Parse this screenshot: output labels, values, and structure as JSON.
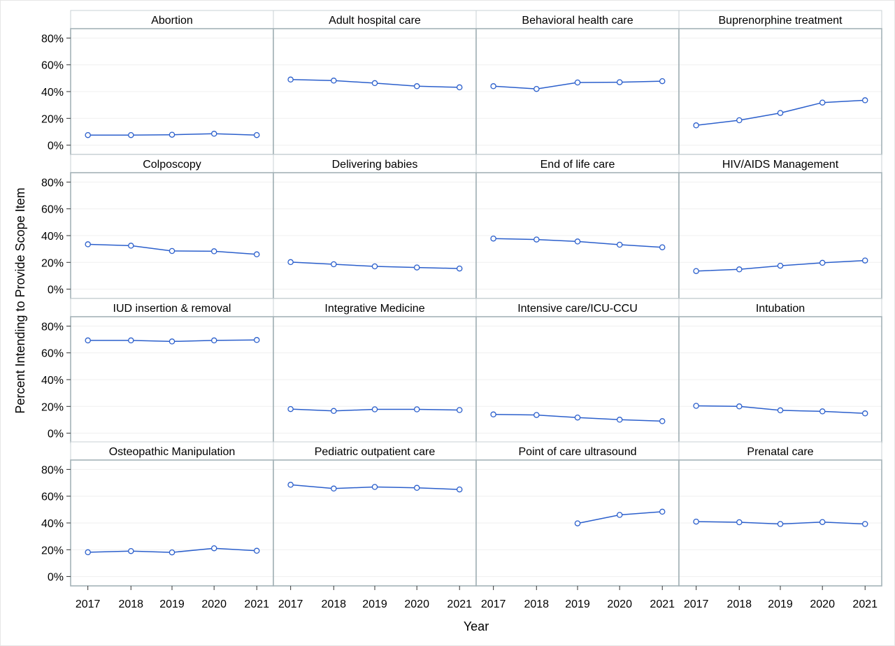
{
  "chart_data": {
    "type": "line",
    "xlabel": "Year",
    "ylabel": "Percent Intending to Provide Scope Item",
    "x": [
      "2017",
      "2018",
      "2019",
      "2020",
      "2021"
    ],
    "y_ticks": [
      "0%",
      "20%",
      "40%",
      "60%",
      "80%"
    ],
    "ylim": [
      -7,
      87
    ],
    "grid": true,
    "line_color": "#2b5fcc",
    "panels": [
      {
        "title": "Abortion",
        "values": [
          7.5,
          7.5,
          7.8,
          8.5,
          7.5
        ]
      },
      {
        "title": "Adult hospital care",
        "values": [
          49,
          48.2,
          46.3,
          44,
          43.2
        ]
      },
      {
        "title": "Behavioral health care",
        "values": [
          44,
          42,
          46.8,
          47,
          47.8
        ]
      },
      {
        "title": "Buprenorphine treatment",
        "values": [
          14.8,
          18.6,
          24,
          31.8,
          33.5
        ]
      },
      {
        "title": "Colposcopy",
        "values": [
          33.5,
          32.5,
          28.5,
          28.3,
          26
        ]
      },
      {
        "title": "Delivering babies",
        "values": [
          20.2,
          18.6,
          17,
          16.2,
          15.4
        ]
      },
      {
        "title": "End of life care",
        "values": [
          37.8,
          37.1,
          35.6,
          33.2,
          31.3
        ]
      },
      {
        "title": "HIV/AIDS Management",
        "values": [
          13.5,
          14.8,
          17.5,
          19.7,
          21.4
        ]
      },
      {
        "title": "IUD insertion & removal",
        "values": [
          69.3,
          69.3,
          68.5,
          69.3,
          69.6
        ]
      },
      {
        "title": "Integrative Medicine",
        "values": [
          18,
          16.6,
          17.8,
          17.8,
          17.3
        ]
      },
      {
        "title": "Intensive care/ICU-CCU",
        "values": [
          14,
          13.6,
          11.7,
          10.1,
          9
        ]
      },
      {
        "title": "Intubation",
        "values": [
          20.4,
          20,
          17.1,
          16.3,
          14.8
        ]
      },
      {
        "title": "Osteopathic Manipulation",
        "values": [
          18.1,
          19,
          18,
          21.1,
          19.2
        ]
      },
      {
        "title": "Pediatric outpatient care",
        "values": [
          68.5,
          65.7,
          66.9,
          66.2,
          65
        ]
      },
      {
        "title": "Point of care ultrasound",
        "values": [
          null,
          null,
          39.7,
          46,
          48.4
        ]
      },
      {
        "title": "Prenatal care",
        "values": [
          41,
          40.5,
          39.2,
          40.7,
          39.2
        ]
      }
    ]
  }
}
